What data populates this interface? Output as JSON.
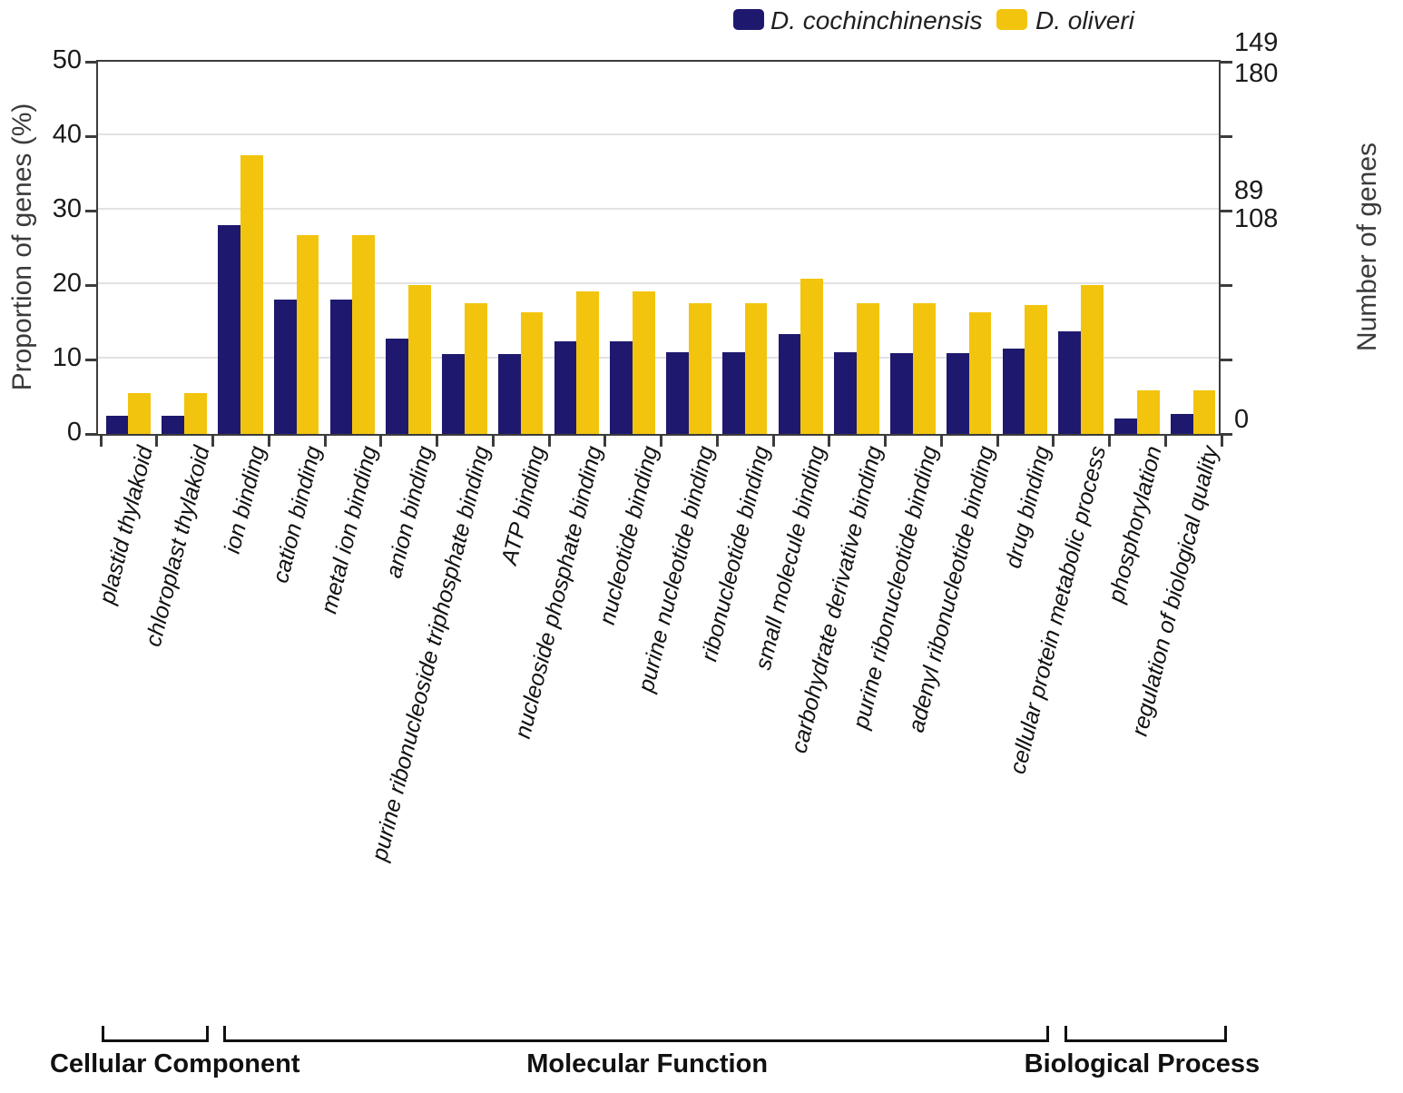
{
  "chart_data": {
    "type": "bar",
    "title": "",
    "ylabel_left": "Proportion of genes (%)",
    "ylabel_right": "Number of genes",
    "ylim": [
      0,
      50
    ],
    "grid": true,
    "legend_position": "top-right",
    "left_ticks": [
      0,
      10,
      20,
      30,
      40,
      50
    ],
    "right_axis_labels": [
      {
        "text": "149",
        "pct": 52.3
      },
      {
        "text": "180",
        "pct": 48.2
      },
      {
        "text": "89",
        "pct": 32.5
      },
      {
        "text": "108",
        "pct": 28.6
      },
      {
        "text": "0",
        "pct": 1.7
      }
    ],
    "categories": [
      "plastid thylakoid",
      "chloroplast thylakoid",
      "ion binding",
      "cation binding",
      "metal ion binding",
      "anion binding",
      "purine ribonucleoside triphosphate binding",
      "ATP binding",
      "nucleoside phosphate binding",
      "nucleotide binding",
      "purine nucleotide binding",
      "ribonucleotide binding",
      "small molecule binding",
      "carbohydrate derivative binding",
      "purine ribonucleotide binding",
      "adenyl ribonucleotide binding",
      "drug binding",
      "cellular protein metabolic process",
      "phosphorylation",
      "regulation of biological quality"
    ],
    "series": [
      {
        "name": "D. cochinchinensis",
        "color": "#1e196e",
        "values": [
          2.4,
          2.4,
          28.1,
          18.1,
          18.1,
          12.8,
          10.7,
          10.7,
          12.4,
          12.4,
          11.0,
          11.0,
          13.4,
          11.0,
          10.8,
          10.8,
          11.5,
          13.8,
          2.1,
          2.7
        ]
      },
      {
        "name": "D. oliveri",
        "color": "#f2c40d",
        "values": [
          5.5,
          5.5,
          37.4,
          26.7,
          26.7,
          20.0,
          17.6,
          16.4,
          19.1,
          19.1,
          17.6,
          17.6,
          20.9,
          17.6,
          17.6,
          16.4,
          17.3,
          20.0,
          5.9,
          5.9
        ]
      }
    ],
    "groups": [
      {
        "label": "Cellular Component",
        "start": 0,
        "end": 1
      },
      {
        "label": "Molecular Function",
        "start": 2,
        "end": 16
      },
      {
        "label": "Biological Process",
        "start": 17,
        "end": 19
      }
    ]
  },
  "colors": {
    "axis": "#3c3c3c",
    "grid": "#e2e2e2",
    "bracket": "#111111"
  }
}
